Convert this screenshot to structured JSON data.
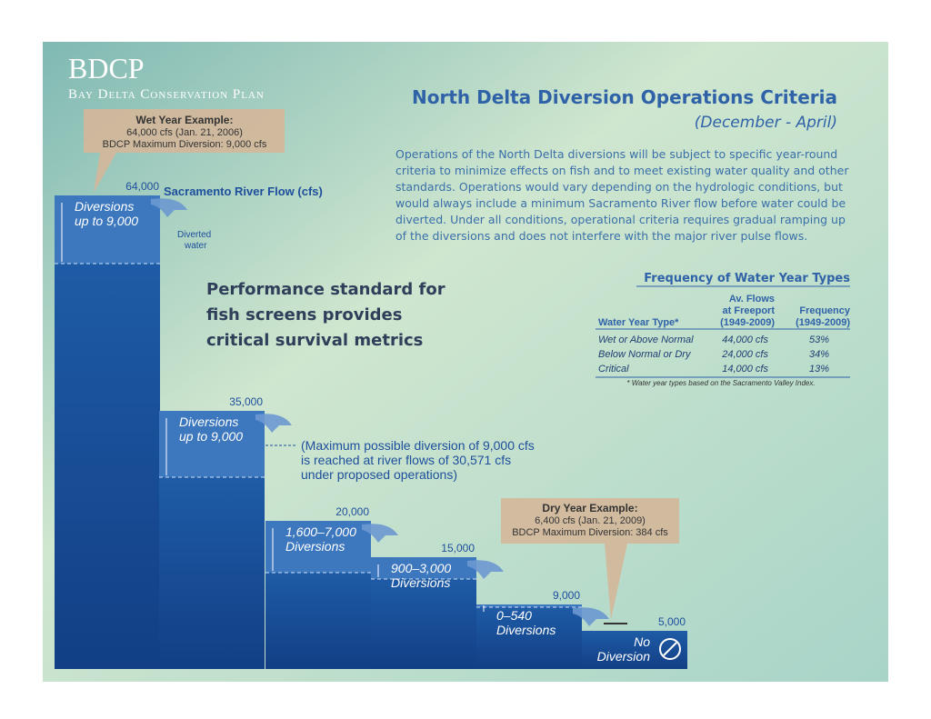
{
  "header": {
    "logo": "BDCP",
    "org": "Bay Delta Conservation Plan",
    "title": "North Delta Diversion Operations Criteria",
    "subtitle": "(December - April)",
    "description": [
      "Operations of the North Delta diversions will be subject to specific year-round",
      "criteria to minimize effects on fish and to meet existing water quality and other",
      "standards. Operations would vary depending on the hydrologic conditions, but",
      "would always include a minimum Sacramento River flow before water could be",
      "diverted. Under all conditions, operational criteria requires gradual ramping up",
      "of the diversions and does not interfere with the major river pulse flows."
    ]
  },
  "wet_example": {
    "title": "Wet Year Example:",
    "lines": [
      "64,000 cfs (Jan. 21, 2006)",
      "BDCP Maximum Diversion: 9,000 cfs"
    ]
  },
  "dry_example": {
    "title": "Dry Year Example:",
    "lines": [
      "6,400 cfs (Jan. 21, 2009)",
      "BDCP Maximum Diversion: 384 cfs"
    ]
  },
  "flow_label": "Sacramento River Flow (cfs)",
  "diverted_note": [
    "Diverted",
    "water"
  ],
  "performance_note": [
    "Performance standard for",
    "fish screens provides",
    "critical survival metrics"
  ],
  "max_note": [
    "(Maximum possible diversion of 9,000 cfs",
    "is reached at river flows of 30,571 cfs",
    "under proposed operations)"
  ],
  "steps": [
    {
      "flow": "64,000",
      "label": [
        "Diversions",
        "up to 9,000"
      ]
    },
    {
      "flow": "35,000",
      "label": [
        "Diversions",
        "up to 9,000"
      ]
    },
    {
      "flow": "20,000",
      "label": [
        "1,600–7,000",
        "Diversions"
      ]
    },
    {
      "flow": "15,000",
      "label": [
        "900–3,000",
        "Diversions"
      ]
    },
    {
      "flow": "9,000",
      "label": [
        "0–540",
        "Diversions"
      ]
    },
    {
      "flow": "5,000",
      "label": [
        "No",
        "Diversion"
      ]
    }
  ],
  "table": {
    "title": "Frequency of Water Year Types",
    "header": [
      [
        "Water Year Type*"
      ],
      [
        "Av. Flows",
        "at Freeport",
        "(1949-2009)"
      ],
      [
        "Frequency",
        "(1949-2009)"
      ]
    ],
    "rows": [
      [
        "Wet or  Above Normal",
        "44,000 cfs",
        "53%"
      ],
      [
        "Below Normal or Dry",
        "24,000 cfs",
        "34%"
      ],
      [
        "Critical",
        "14,000 cfs",
        "13%"
      ]
    ],
    "footnote": "* Water year types based on the Sacramento Valley Index."
  }
}
